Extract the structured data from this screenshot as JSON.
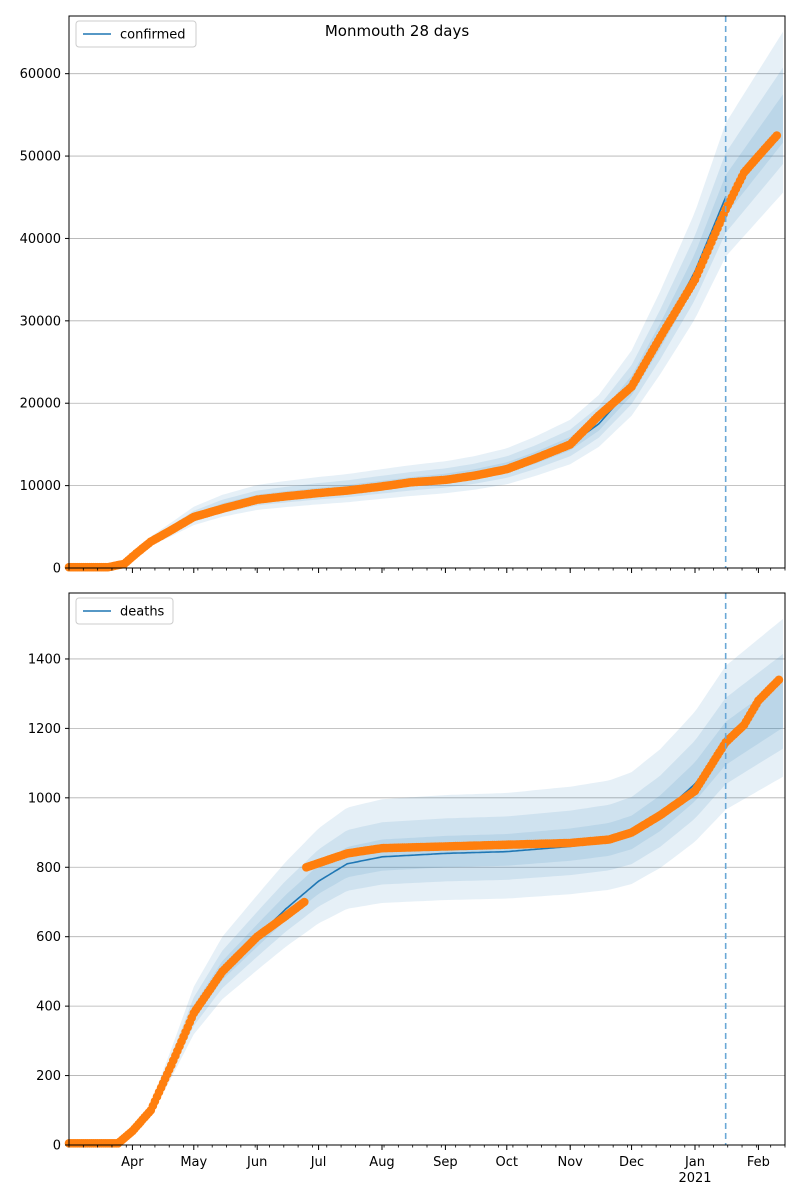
{
  "title": "Monmouth 28 days",
  "chart_data": [
    {
      "type": "line",
      "title": "Monmouth 28 days",
      "legend": [
        "confirmed"
      ],
      "legend_position": "top-left",
      "grid": "horizontal",
      "x_axis": {
        "type": "date",
        "range": [
          "2020-03-01",
          "2021-02-14"
        ],
        "tick_labels": [],
        "tick_labels_shown": false
      },
      "y_axis": {
        "range": [
          0,
          67000
        ],
        "ticks": [
          0,
          10000,
          20000,
          30000,
          40000,
          50000,
          60000
        ]
      },
      "vertical_line": {
        "x": "2021-01-16",
        "style": "dashed"
      },
      "model_series": {
        "name": "confirmed",
        "color": "#1f77b4",
        "x": [
          "2020-03-01",
          "2020-03-15",
          "2020-03-28",
          "2020-04-03",
          "2020-04-10",
          "2020-04-20",
          "2020-05-01",
          "2020-05-15",
          "2020-06-01",
          "2020-06-15",
          "2020-07-01",
          "2020-07-15",
          "2020-08-01",
          "2020-08-15",
          "2020-09-01",
          "2020-09-15",
          "2020-10-01",
          "2020-10-15",
          "2020-11-01",
          "2020-11-15",
          "2020-12-01",
          "2020-12-15",
          "2021-01-01",
          "2021-01-16"
        ],
        "y": [
          0,
          0,
          500,
          1800,
          3200,
          4600,
          6200,
          7400,
          8400,
          8800,
          9200,
          9500,
          10000,
          10400,
          10800,
          11300,
          12100,
          13300,
          15000,
          17500,
          22000,
          28000,
          36000,
          45000
        ]
      },
      "observed_series": {
        "color": "#ff7f0e",
        "x": [
          "2020-03-01",
          "2020-03-20",
          "2020-03-28",
          "2020-04-03",
          "2020-04-10",
          "2020-04-20",
          "2020-05-01",
          "2020-05-15",
          "2020-06-01",
          "2020-06-15",
          "2020-07-01",
          "2020-07-15",
          "2020-08-01",
          "2020-08-15",
          "2020-09-01",
          "2020-09-15",
          "2020-10-01",
          "2020-10-15",
          "2020-11-01",
          "2020-11-15",
          "2020-12-01",
          "2020-12-15",
          "2021-01-01",
          "2021-01-16",
          "2021-01-25",
          "2021-02-01",
          "2021-02-10"
        ],
        "y": [
          100,
          100,
          500,
          1800,
          3200,
          4600,
          6200,
          7200,
          8300,
          8700,
          9100,
          9400,
          9900,
          10400,
          10700,
          11200,
          12000,
          13300,
          15000,
          18500,
          22000,
          28000,
          35000,
          43500,
          48000,
          50000,
          52500
        ]
      },
      "bands_note": "confidence bands around model",
      "band_widths": [
        0.06,
        0.12,
        0.2
      ]
    },
    {
      "type": "line",
      "legend": [
        "deaths"
      ],
      "legend_position": "top-left",
      "grid": "horizontal",
      "x_axis": {
        "type": "date",
        "range": [
          "2020-03-01",
          "2021-02-14"
        ],
        "tick_labels": [
          "Apr",
          "May",
          "Jun",
          "Jul",
          "Aug",
          "Sep",
          "Oct",
          "Nov",
          "Dec",
          "Jan",
          "Feb"
        ],
        "tick_dates": [
          "2020-04-01",
          "2020-05-01",
          "2020-06-01",
          "2020-07-01",
          "2020-08-01",
          "2020-09-01",
          "2020-10-01",
          "2020-11-01",
          "2020-12-01",
          "2021-01-01",
          "2021-02-01"
        ],
        "year_label": "2021"
      },
      "y_axis": {
        "range": [
          0,
          1590
        ],
        "ticks": [
          0,
          200,
          400,
          600,
          800,
          1000,
          1200,
          1400
        ]
      },
      "vertical_line": {
        "x": "2021-01-16",
        "style": "dashed"
      },
      "model_series": {
        "name": "deaths",
        "color": "#1f77b4",
        "x": [
          "2020-03-01",
          "2020-03-20",
          "2020-03-30",
          "2020-04-10",
          "2020-04-20",
          "2020-05-01",
          "2020-05-15",
          "2020-06-01",
          "2020-06-15",
          "2020-07-01",
          "2020-07-15",
          "2020-08-01",
          "2020-09-01",
          "2020-10-01",
          "2020-11-01",
          "2020-11-20",
          "2020-12-01",
          "2020-12-15",
          "2021-01-01",
          "2021-01-16"
        ],
        "y": [
          0,
          0,
          20,
          100,
          230,
          380,
          500,
          600,
          680,
          760,
          810,
          830,
          840,
          845,
          860,
          875,
          895,
          950,
          1040,
          1150
        ]
      },
      "observed_series": {
        "color": "#ff7f0e",
        "x": [
          "2020-03-01",
          "2020-03-25",
          "2020-04-01",
          "2020-04-10",
          "2020-04-20",
          "2020-05-01",
          "2020-05-15",
          "2020-06-01",
          "2020-06-15",
          "2020-06-24",
          "2020-06-25",
          "2020-07-05",
          "2020-07-15",
          "2020-08-01",
          "2020-09-01",
          "2020-10-01",
          "2020-11-01",
          "2020-11-20",
          "2020-12-01",
          "2020-12-15",
          "2021-01-01",
          "2021-01-16",
          "2021-01-25",
          "2021-02-01",
          "2021-02-11"
        ],
        "y": [
          5,
          5,
          40,
          100,
          230,
          380,
          500,
          600,
          660,
          700,
          800,
          820,
          840,
          855,
          860,
          865,
          870,
          880,
          900,
          950,
          1020,
          1160,
          1210,
          1280,
          1340
        ]
      },
      "band_widths": [
        0.06,
        0.12,
        0.2
      ]
    }
  ]
}
